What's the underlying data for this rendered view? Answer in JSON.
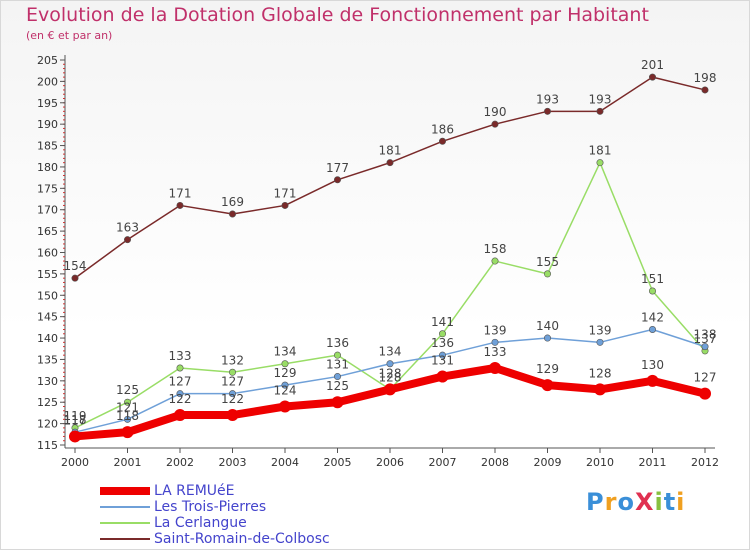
{
  "title": "Evolution de la Dotation Globale de Fonctionnement par Habitant",
  "subtitle": "(en € et par an)",
  "logo": "ProXiti",
  "chart_data": {
    "type": "line",
    "x": [
      "2000",
      "2001",
      "2002",
      "2003",
      "2004",
      "2005",
      "2006",
      "2007",
      "2008",
      "2009",
      "2010",
      "2011",
      "2012"
    ],
    "ylim": [
      115,
      205
    ],
    "y_ticks": [
      115,
      120,
      125,
      130,
      135,
      140,
      145,
      150,
      155,
      160,
      165,
      170,
      175,
      180,
      185,
      190,
      195,
      200,
      205
    ],
    "grid": false,
    "legend_position": "bottom-left",
    "series": [
      {
        "name": "LA REMUéE",
        "color": "#ee0000",
        "values": [
          117,
          118,
          122,
          122,
          124,
          125,
          128,
          131,
          133,
          129,
          128,
          130,
          127
        ]
      },
      {
        "name": "Les Trois-Pierres",
        "color": "#6fa0d8",
        "values": [
          118,
          121,
          127,
          127,
          129,
          131,
          134,
          136,
          139,
          140,
          139,
          142,
          138
        ]
      },
      {
        "name": "La Cerlangue",
        "color": "#99dd66",
        "values": [
          119,
          125,
          133,
          132,
          134,
          136,
          128,
          141,
          158,
          155,
          181,
          151,
          137
        ]
      },
      {
        "name": "Saint-Romain-de-Colbosc",
        "color": "#7a2a2a",
        "values": [
          154,
          163,
          171,
          169,
          171,
          177,
          181,
          186,
          190,
          193,
          193,
          201,
          198
        ]
      }
    ]
  }
}
